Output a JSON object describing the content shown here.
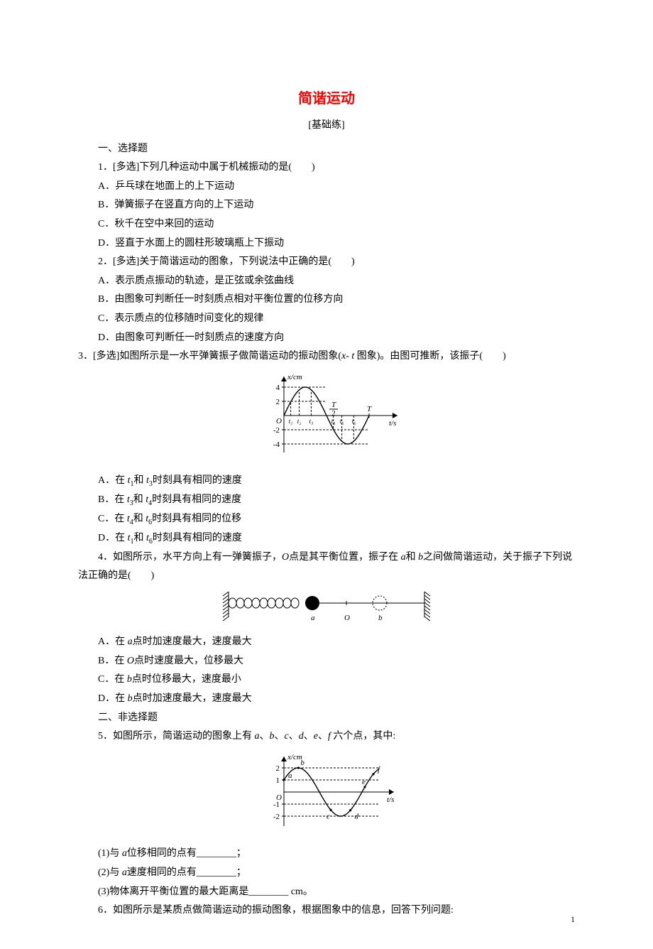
{
  "title": "简谐运动",
  "subtitle": "[基础练]",
  "sect1": "一、选择题",
  "q1": {
    "stem": "1．[多选]下列几种运动中属于机械振动的是(　　)",
    "A": "A．乒乓球在地面上的上下运动",
    "B": "B．弹簧振子在竖直方向的上下运动",
    "C": "C．秋千在空中来回的运动",
    "D": "D．竖直于水面上的圆柱形玻璃瓶上下振动"
  },
  "q2": {
    "stem": "2．[多选]关于简谐运动的图象，下列说法中正确的是(　　)",
    "A": "A．表示质点振动的轨迹，是正弦或余弦曲线",
    "B": "B．由图象可判断任一时刻质点相对平衡位置的位移方向",
    "C": "C．表示质点的位移随时间变化的规律",
    "D": "D．由图象可判断任一时刻质点的速度方向"
  },
  "q3": {
    "stem_a": "3．[多选]如图所示是一水平弹簧振子做简谐运动的振动图象(",
    "stem_b": "图象)。由图可推断，该振子(　　)",
    "A_a": "A．在 ",
    "A_b": "和 ",
    "A_c": "时刻具有相同的速度",
    "B_a": "B．在 ",
    "B_b": "和 ",
    "B_c": "时刻具有相同的速度",
    "C_a": "C．在 ",
    "C_b": "和 ",
    "C_c": "时刻具有相同的位移",
    "D_a": "D．在 ",
    "D_b": "和 ",
    "D_c": "时刻具有相同的速度",
    "t1": "t",
    "s1": "1",
    "t3": "t",
    "s3": "3",
    "t4": "t",
    "s4": "4",
    "t6": "t",
    "s6": "6",
    "xt": "x- t ",
    "fig": {
      "ylabel": "x/cm",
      "xlabel": "t/s",
      "yticks": [
        "4",
        "2",
        "-2",
        "-4"
      ],
      "origin": "O",
      "T2_num": "T",
      "T2_den": "2",
      "T": "T",
      "tlabels": [
        "t₁",
        "t₂",
        "t₃",
        "t₄",
        "t₅",
        "t₆"
      ],
      "amp": 4,
      "axis_color": "#000000",
      "curve_color": "#000000",
      "dash": "3,2"
    }
  },
  "q4": {
    "stem_a": "4．如图所示，水平方向上有一弹簧振子，",
    "stem_b": "点是其平衡位置，振子在 ",
    "stem_c": "和 ",
    "stem_d": "之间做简谐运动，关于振子下列说法正确的是(　　)",
    "O": "O",
    "a": "a",
    "b": "b",
    "A_a": "A．在 ",
    "A_b": "点时加速度最大，速度最大",
    "B_a": "B．在 ",
    "B_b": "点时速度最大，位移最大",
    "C_a": "C．在 ",
    "C_b": "点时位移最大，速度最小",
    "D_a": "D．在 ",
    "D_b": "点时加速度最大，速度最大",
    "fig": {
      "label_a": "a",
      "label_O": "O",
      "label_b": "b",
      "col": "#000000"
    }
  },
  "sect2": "二、非选择题",
  "q5": {
    "stem_a": "5．如图所示，简谐运动的图象上有 ",
    "stem_b": "、",
    "stem_c": "、",
    "stem_d": "、",
    "stem_e": "、",
    "stem_f": "、",
    "stem_g": " 六个点，其中:",
    "a": "a",
    "b": "b",
    "c": "c",
    "d": "d",
    "e": "e",
    "f": "f",
    "p1_a": "(1)与 ",
    "p1_b": "位移相同的点有________；",
    "p2_a": "(2)与 ",
    "p2_b": "速度相同的点有________；",
    "p3": "(3)物体离开平衡位置的最大距离是________ cm。",
    "fig": {
      "ylabel": "x/cm",
      "xlabel": "t/s",
      "yticks": [
        "2",
        "1",
        "-1",
        "-2"
      ],
      "origin": "O",
      "pts": [
        "a",
        "b",
        "c",
        "d",
        "e",
        "f"
      ],
      "col": "#000000",
      "dash": "3,2"
    }
  },
  "q6": {
    "stem": "6．如图所示是某质点做简谐运动的振动图象，根据图象中的信息，回答下列问题:"
  },
  "page_num": "1"
}
